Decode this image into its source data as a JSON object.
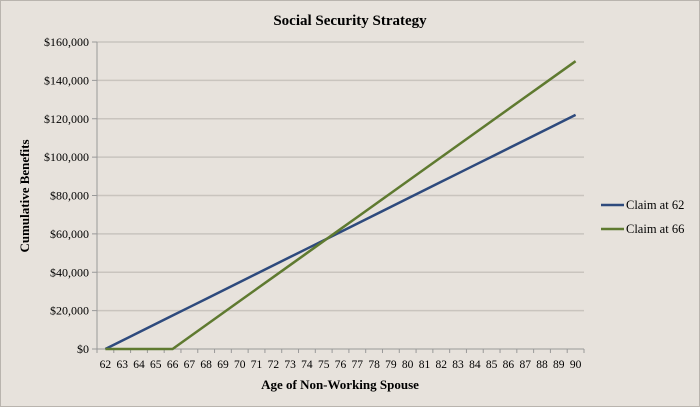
{
  "chart_data": {
    "type": "line",
    "title": "Social Security Strategy",
    "xlabel": "Age of Non-Working Spouse",
    "ylabel": "Cumulative Benefits",
    "categories": [
      "62",
      "63",
      "64",
      "65",
      "66",
      "67",
      "68",
      "69",
      "70",
      "71",
      "72",
      "73",
      "74",
      "75",
      "76",
      "77",
      "78",
      "79",
      "80",
      "81",
      "82",
      "83",
      "84",
      "85",
      "86",
      "87",
      "88",
      "89",
      "90"
    ],
    "ylim": [
      0,
      160000
    ],
    "yticks": [
      0,
      20000,
      40000,
      60000,
      80000,
      100000,
      120000,
      140000,
      160000
    ],
    "ytick_labels": [
      "$0",
      "$20,000",
      "$40,000",
      "$60,000",
      "$80,000",
      "$100,000",
      "$120,000",
      "$140,000",
      "$160,000"
    ],
    "grid": true,
    "legend_position": "right",
    "series": [
      {
        "name": "Claim at 62",
        "color": "#2e4a7d",
        "values": [
          0,
          4360,
          8710,
          13070,
          17430,
          21790,
          26140,
          30500,
          34860,
          39210,
          43570,
          47930,
          52280,
          56640,
          61000,
          65360,
          69710,
          74070,
          78430,
          82790,
          87140,
          91500,
          95860,
          100210,
          104570,
          108930,
          113280,
          117640,
          122000
        ]
      },
      {
        "name": "Claim at 66",
        "color": "#5f7a30",
        "values": [
          0,
          0,
          0,
          0,
          0,
          6250,
          12500,
          18750,
          25000,
          31250,
          37500,
          43750,
          50000,
          56250,
          62500,
          68750,
          75000,
          81250,
          87500,
          93750,
          100000,
          106250,
          112500,
          118750,
          125000,
          131250,
          137500,
          143750,
          150000
        ]
      }
    ]
  }
}
